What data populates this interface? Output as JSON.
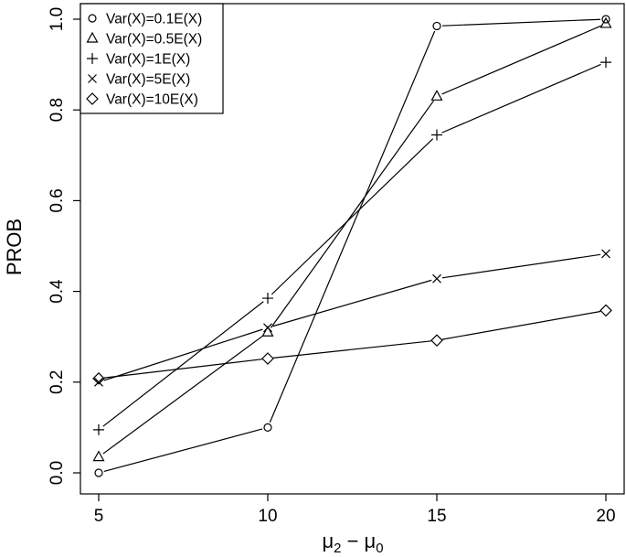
{
  "chart_data": {
    "type": "line",
    "title": "",
    "xlabel": "μ2 − μ0",
    "ylabel": "PROB",
    "x": [
      5,
      10,
      15,
      20
    ],
    "xlim": [
      5,
      20
    ],
    "ylim": [
      0.0,
      1.0
    ],
    "xticks": [
      5,
      10,
      15,
      20
    ],
    "yticks": [
      0.0,
      0.2,
      0.4,
      0.6,
      0.8,
      1.0
    ],
    "xtick_labels": [
      "5",
      "10",
      "15",
      "20"
    ],
    "ytick_labels": [
      "0.0",
      "0.2",
      "0.4",
      "0.6",
      "0.8",
      "1.0"
    ],
    "grid": false,
    "legend_position": "top-left",
    "series": [
      {
        "name": "Var(X)=0.1E(X)",
        "marker": "circle",
        "values": [
          0.0,
          0.1,
          0.985,
          1.0
        ]
      },
      {
        "name": "Var(X)=0.5E(X)",
        "marker": "triangle",
        "values": [
          0.035,
          0.31,
          0.83,
          0.99
        ]
      },
      {
        "name": "Var(X)=1E(X)",
        "marker": "plus",
        "values": [
          0.095,
          0.385,
          0.745,
          0.905
        ]
      },
      {
        "name": "Var(X)=5E(X)",
        "marker": "cross",
        "values": [
          0.2,
          0.32,
          0.428,
          0.483
        ]
      },
      {
        "name": "Var(X)=10E(X)",
        "marker": "diamond",
        "values": [
          0.208,
          0.252,
          0.292,
          0.358
        ]
      }
    ]
  }
}
